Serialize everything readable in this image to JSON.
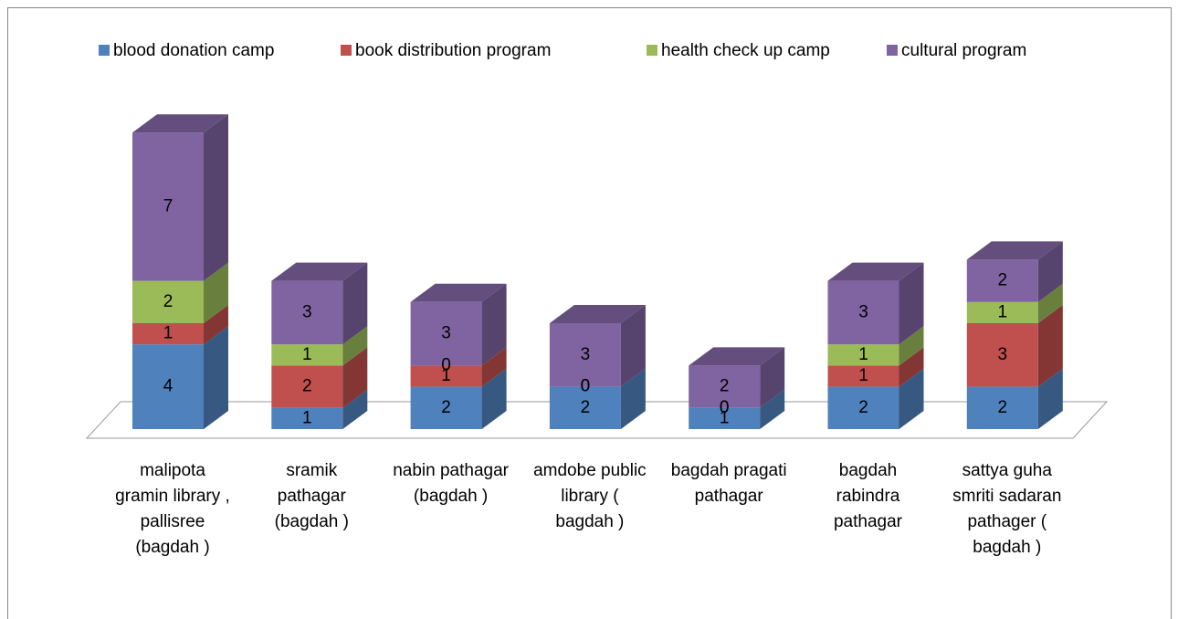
{
  "chart_data": {
    "type": "bar3d_stacked",
    "categories": [
      "malipota gramin library , pallisree (bagdah )",
      "sramik pathagar (bagdah )",
      "nabin pathagar (bagdah )",
      "amdobe public library ( bagdah )",
      "bagdah pragati pathagar",
      "bagdah rabindra pathagar",
      "sattya guha smriti sadaran pathager ( bagdah )"
    ],
    "series": [
      {
        "name": "blood donation camp",
        "color": "#4f81bd",
        "values": [
          4,
          1,
          2,
          2,
          1,
          2,
          2
        ]
      },
      {
        "name": "book distribution program",
        "color": "#c0504d",
        "values": [
          1,
          2,
          1,
          0,
          0,
          1,
          3
        ]
      },
      {
        "name": "health check up camp",
        "color": "#9bbb59",
        "values": [
          2,
          1,
          0,
          0,
          0,
          1,
          1
        ]
      },
      {
        "name": "cultural program",
        "color": "#8064a2",
        "values": [
          7,
          3,
          3,
          3,
          2,
          3,
          2
        ]
      }
    ],
    "legend": "top",
    "stacked": true
  }
}
